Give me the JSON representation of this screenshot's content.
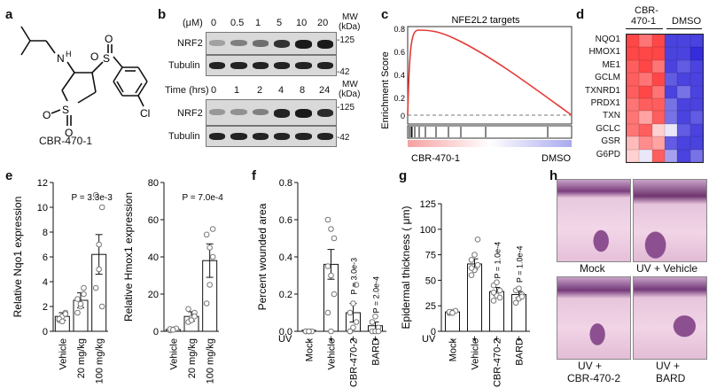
{
  "panels": {
    "a": "a",
    "b": "b",
    "c": "c",
    "d": "d",
    "e": "e",
    "f": "f",
    "g": "g",
    "h": "h"
  },
  "panel_a": {
    "compound_name": "CBR-470-1",
    "atoms": {
      "n": "N",
      "h": "H",
      "s1": "S",
      "o1": "O",
      "o2": "O",
      "s2": "S",
      "o3": "O",
      "o4": "O",
      "cl": "Cl"
    }
  },
  "panel_b": {
    "dose_header": "(μM)",
    "dose_values": [
      "0",
      "0.5",
      "1",
      "5",
      "10",
      "20"
    ],
    "mw_header_line1": "MW",
    "mw_header_line2": "(kDa)",
    "time_header": "Time (hrs)",
    "time_values": [
      "0",
      "1",
      "2",
      "4",
      "8",
      "24"
    ],
    "row_nrf2": "NRF2",
    "row_tubulin": "Tubulin",
    "mw_125": "-125",
    "mw_42": "-42",
    "dose_nrf2_intensity": [
      0.15,
      0.35,
      0.45,
      0.8,
      0.95,
      0.95
    ],
    "time_nrf2_intensity": [
      0.2,
      0.25,
      0.35,
      0.9,
      0.95,
      0.85
    ]
  },
  "panel_c": {
    "title": "NFE2L2 targets",
    "ylabel": "Enrichment Score",
    "y_ticks": [
      "0.8",
      "0.6",
      "0.4",
      "0.2",
      "0"
    ],
    "left_label": "CBR-470-1",
    "right_label": "DMSO",
    "line_color": "#e53935"
  },
  "panel_d": {
    "group1_line1": "CBR-",
    "group1_line2": "470-1",
    "group2": "DMSO",
    "genes": [
      "NQO1",
      "HMOX1",
      "ME1",
      "GCLM",
      "TXNRD1",
      "PRDX1",
      "TXN",
      "GCLC",
      "GSR",
      "G6PD"
    ],
    "heatmap": [
      [
        0.9,
        0.8,
        0.9,
        0.1,
        0.1,
        0.1
      ],
      [
        0.9,
        0.9,
        0.9,
        0.1,
        0.1,
        0.05
      ],
      [
        0.85,
        0.9,
        0.8,
        0.1,
        0.15,
        0.1
      ],
      [
        0.85,
        0.8,
        0.9,
        0.15,
        0.1,
        0.1
      ],
      [
        0.85,
        0.9,
        0.8,
        0.1,
        0.2,
        0.1
      ],
      [
        0.8,
        0.85,
        0.85,
        0.2,
        0.1,
        0.1
      ],
      [
        0.8,
        0.7,
        0.85,
        0.2,
        0.1,
        0.15
      ],
      [
        0.8,
        0.85,
        0.6,
        0.45,
        0.15,
        0.1
      ],
      [
        0.65,
        0.75,
        0.7,
        0.15,
        0.1,
        0.1
      ],
      [
        0.6,
        0.45,
        0.85,
        0.3,
        0.1,
        0.2
      ]
    ]
  },
  "chart_data": [
    {
      "type": "bar",
      "panel": "e-left",
      "ylabel": "Relative  Nqo1 expression",
      "categories": [
        "Vehicle",
        "20 mg/kg",
        "100 mg/kg"
      ],
      "values": [
        1.2,
        2.5,
        6.2
      ],
      "errors": [
        0.3,
        0.6,
        1.6
      ],
      "points": [
        [
          0.9,
          1.2,
          1.5,
          1.0,
          0.8,
          1.4
        ],
        [
          1.5,
          2.0,
          3.5,
          2.6,
          2.2,
          3.0
        ],
        [
          3.5,
          5.0,
          10.0,
          11.0,
          7.0,
          2.0
        ]
      ],
      "ylim": [
        0,
        12
      ],
      "y_ticks": [
        0,
        2,
        4,
        6,
        8,
        10,
        12
      ],
      "annotation": "P = 3.3e-3"
    },
    {
      "type": "bar",
      "panel": "e-right",
      "ylabel": "Relative  Hmox1 expression",
      "categories": [
        "Vehicle",
        "20 mg/kg",
        "100 mg/kg"
      ],
      "values": [
        1.0,
        8.0,
        38.0
      ],
      "errors": [
        0.5,
        2.5,
        9.0
      ],
      "points": [
        [
          0.5,
          1.0,
          1.5,
          1.2,
          0.8
        ],
        [
          5,
          7,
          10,
          12,
          6,
          8
        ],
        [
          15,
          25,
          40,
          52,
          45,
          55
        ]
      ],
      "ylim": [
        0,
        80
      ],
      "y_ticks": [
        0,
        20,
        40,
        60,
        80
      ],
      "annotation": "P = 7.0e-4"
    },
    {
      "type": "bar",
      "panel": "f",
      "ylabel": "Percent wounded area",
      "categories": [
        "Mock",
        "Vehicle",
        "CBR-470-2",
        "BARD"
      ],
      "uv": [
        "-",
        "+",
        "+",
        "+"
      ],
      "uv_label": "UV",
      "values": [
        0.0,
        0.36,
        0.1,
        0.03
      ],
      "errors": [
        0.0,
        0.08,
        0.05,
        0.02
      ],
      "points": [
        [
          0,
          0,
          0,
          0,
          0
        ],
        [
          0.6,
          0.55,
          0.5,
          0.35,
          0.3,
          0.2,
          0.1,
          0.0
        ],
        [
          0.0,
          0.02,
          0.05,
          0.1,
          0.15,
          0.25,
          0.0
        ],
        [
          0.0,
          0.0,
          0.02,
          0.05,
          0.08,
          0.0
        ]
      ],
      "ylim": [
        0,
        0.8
      ],
      "y_ticks": [
        "0.0",
        "0.2",
        "0.4",
        "0.6",
        "0.8"
      ],
      "annotations": [
        "P = 3.0e-3",
        "P = 2.0e-4"
      ]
    },
    {
      "type": "bar",
      "panel": "g",
      "ylabel": "Epidermal thickness (  μm)",
      "categories": [
        "Mock",
        "Vehicle",
        "CBR-470-2",
        "BARD"
      ],
      "uv": [
        "-",
        "+",
        "+",
        "+"
      ],
      "uv_label": "UV",
      "values": [
        19,
        66,
        39,
        36
      ],
      "errors": [
        1,
        5,
        4,
        3
      ],
      "points": [
        [
          18,
          19,
          20,
          19,
          18
        ],
        [
          55,
          60,
          65,
          70,
          75,
          90,
          62
        ],
        [
          30,
          35,
          40,
          45,
          48,
          33,
          38
        ],
        [
          28,
          32,
          36,
          40,
          42,
          34
        ]
      ],
      "ylim": [
        0,
        125
      ],
      "y_ticks": [
        0,
        25,
        50,
        75,
        100,
        125
      ],
      "annotations": [
        "P = 1.0e-4",
        "P = 1.0e-4"
      ]
    }
  ],
  "panel_h": {
    "labels": [
      "Mock",
      "UV + Vehicle",
      "UV +",
      "CBR-470-2",
      "UV +",
      "BARD"
    ]
  }
}
